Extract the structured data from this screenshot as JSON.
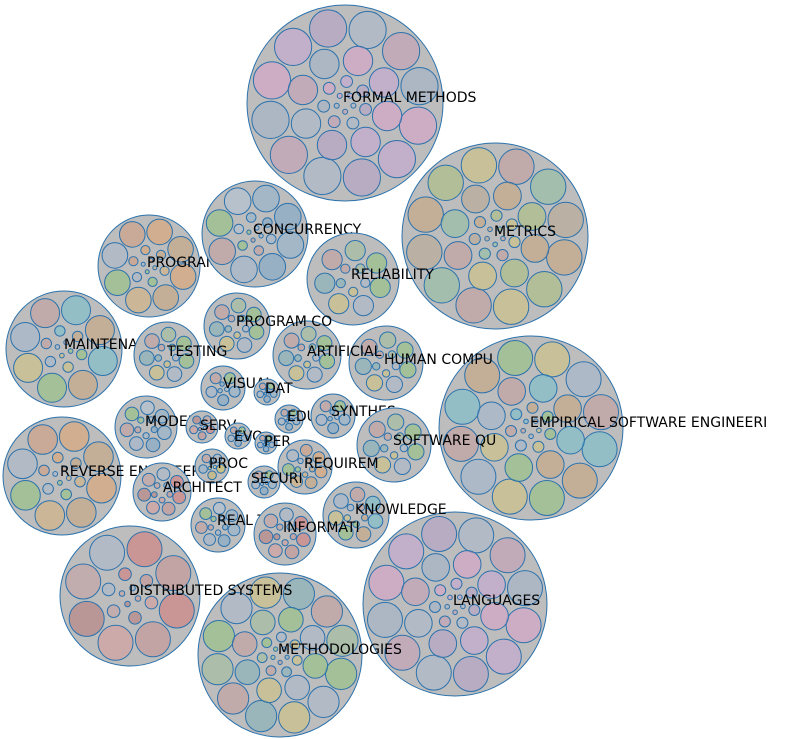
{
  "clusters": [
    {
      "label": "FORMAL METHODS",
      "palette": "pink"
    },
    {
      "label": "METRICS",
      "palette": "warm"
    },
    {
      "label": "EMPIRICAL SOFTWARE ENGINEERI",
      "palette": "teal"
    },
    {
      "label": "LANGUAGES",
      "palette": "pink"
    },
    {
      "label": "METHODOLOGIES",
      "palette": "green"
    },
    {
      "label": "DISTRIBUTED SYSTEMS",
      "palette": "red"
    },
    {
      "label": "REVERSE ENGINEERIN",
      "palette": "orange"
    },
    {
      "label": "MAINTENANCE",
      "palette": "teal"
    },
    {
      "label": "PROGRAM ANALYSI",
      "palette": "orange"
    },
    {
      "label": "CONCURRENCY",
      "palette": "blue"
    },
    {
      "label": "RELIABILITY",
      "palette": "green"
    },
    {
      "label": "HUMAN COMPU",
      "palette": "green"
    },
    {
      "label": "ARTIFICIAL",
      "palette": "green"
    },
    {
      "label": "PROGRAM CO",
      "palette": "green"
    },
    {
      "label": "TESTING",
      "palette": "green"
    },
    {
      "label": "VISUAL",
      "palette": "blue"
    },
    {
      "label": "DAT",
      "palette": "blue"
    },
    {
      "label": "MODELS",
      "palette": "blue"
    },
    {
      "label": "SERV",
      "palette": "red"
    },
    {
      "label": "EVO",
      "palette": "blue"
    },
    {
      "label": "PER",
      "palette": "blue"
    },
    {
      "label": "EDUC",
      "palette": "blue"
    },
    {
      "label": "SYNTHES",
      "palette": "blue"
    },
    {
      "label": "SOFTWARE QU",
      "palette": "green"
    },
    {
      "label": "REQUIREM",
      "palette": "orange"
    },
    {
      "label": "PROC",
      "palette": "yellow"
    },
    {
      "label": "ARCHITECT",
      "palette": "red"
    },
    {
      "label": "SECURI",
      "palette": "blue"
    },
    {
      "label": "KNOWLEDGE",
      "palette": "teal"
    },
    {
      "label": "REAL TIM",
      "palette": "blue"
    },
    {
      "label": "INFORMATI",
      "palette": "red"
    }
  ],
  "colors": {
    "cluster_fill": "#bdbdbd",
    "stroke": "#2b72ad",
    "pink": "#d9a0c8",
    "warm": "#c9a27a",
    "teal": "#72c0cc",
    "green": "#8fc27a",
    "red": "#d47474",
    "orange": "#e0a36a",
    "blue": "#8fb2d0",
    "yellow": "#d4c45a"
  }
}
